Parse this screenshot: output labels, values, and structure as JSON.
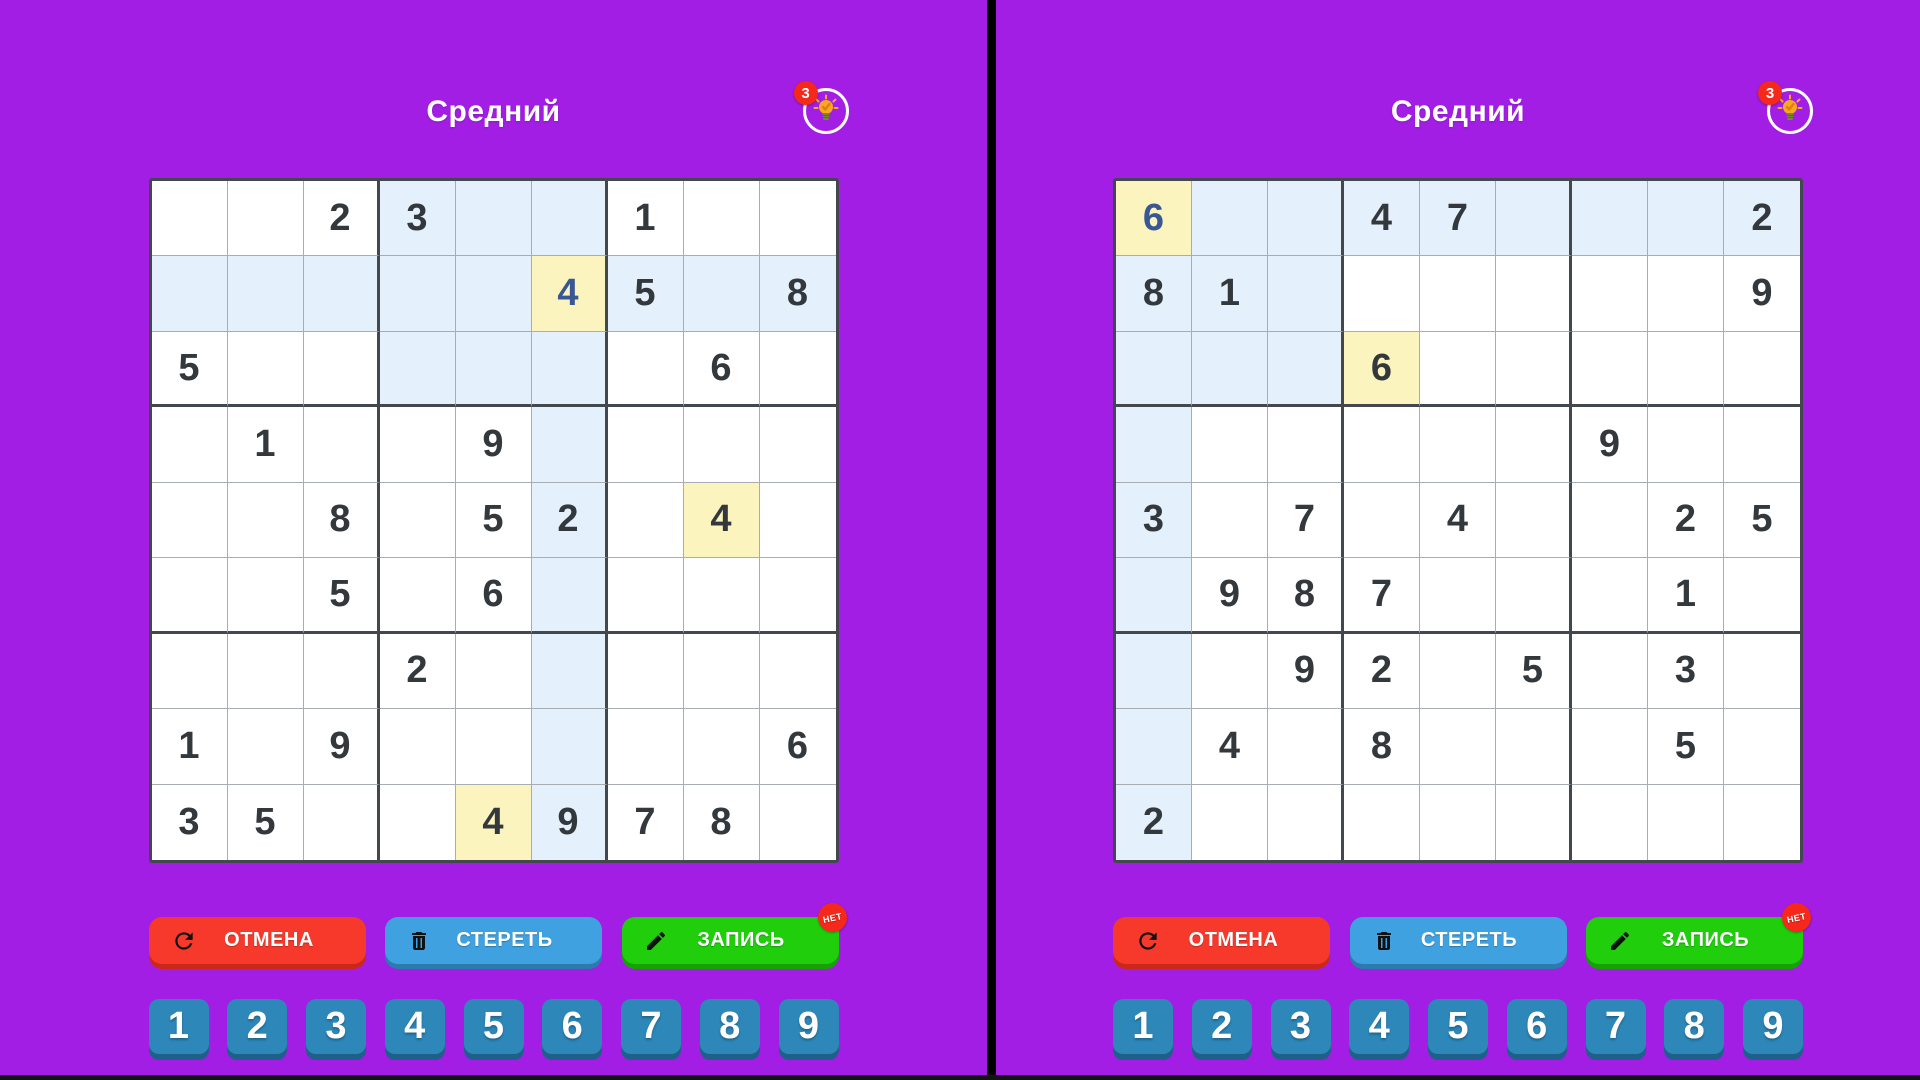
{
  "title": "Средний",
  "controls": {
    "undo": "ОТМЕНА",
    "erase": "СТЕРЕТЬ",
    "notes": "ЗАПИСЬ",
    "notes_badge": "НЕТ"
  },
  "numpad": [
    "1",
    "2",
    "3",
    "4",
    "5",
    "6",
    "7",
    "8",
    "9"
  ],
  "colors": {
    "background": "#A21EE4",
    "divider": "#000000",
    "cell_highlight_blue": "#E4F0FC",
    "cell_highlight_yellow": "#FCF4BE",
    "given_digit": "#33383D",
    "user_digit": "#3A5795",
    "undo_button": "#F6392B",
    "erase_button": "#40A1E0",
    "notes_button": "#20CE0C",
    "numpad_button": "#2D87B9",
    "badge_red": "#F5281B"
  },
  "panels": [
    {
      "title": "Средний",
      "hint_badge": "3",
      "grid": [
        [
          "",
          "",
          "2",
          "3",
          "",
          "",
          "1",
          "",
          ""
        ],
        [
          "",
          "",
          "",
          "",
          "",
          "4",
          "5",
          "",
          "8"
        ],
        [
          "5",
          "",
          "",
          "",
          "",
          "",
          "",
          "6",
          ""
        ],
        [
          "",
          "1",
          "",
          "",
          "9",
          "",
          "",
          "",
          ""
        ],
        [
          "",
          "",
          "8",
          "",
          "5",
          "2",
          "",
          "4",
          ""
        ],
        [
          "",
          "",
          "5",
          "",
          "6",
          "",
          "",
          "",
          ""
        ],
        [
          "",
          "",
          "",
          "2",
          "",
          "",
          "",
          "",
          ""
        ],
        [
          "1",
          "",
          "9",
          "",
          "",
          "",
          "",
          "",
          "6"
        ],
        [
          "3",
          "5",
          "",
          "",
          "4",
          "9",
          "7",
          "8",
          ""
        ]
      ],
      "selected": [
        1,
        5
      ],
      "same_number_cells": [
        [
          4,
          7
        ],
        [
          8,
          4
        ]
      ],
      "user_cells": [
        [
          1,
          5
        ]
      ],
      "highlight_row": 1,
      "highlight_col": 5,
      "highlight_box": [
        0,
        3
      ]
    },
    {
      "title": "Средний",
      "hint_badge": "3",
      "grid": [
        [
          "6",
          "",
          "",
          "4",
          "7",
          "",
          "",
          "",
          "2"
        ],
        [
          "8",
          "1",
          "",
          "",
          "",
          "",
          "",
          "",
          "9"
        ],
        [
          "",
          "",
          "",
          "6",
          "",
          "",
          "",
          "",
          ""
        ],
        [
          "",
          "",
          "",
          "",
          "",
          "",
          "9",
          "",
          ""
        ],
        [
          "3",
          "",
          "7",
          "",
          "4",
          "",
          "",
          "2",
          "5"
        ],
        [
          "",
          "9",
          "8",
          "7",
          "",
          "",
          "",
          "1",
          ""
        ],
        [
          "",
          "",
          "9",
          "2",
          "",
          "5",
          "",
          "3",
          ""
        ],
        [
          "",
          "4",
          "",
          "8",
          "",
          "",
          "",
          "5",
          ""
        ],
        [
          "2",
          "",
          "",
          "",
          "",
          "",
          "",
          "",
          ""
        ]
      ],
      "selected": [
        0,
        0
      ],
      "same_number_cells": [
        [
          2,
          3
        ]
      ],
      "user_cells": [
        [
          0,
          0
        ]
      ],
      "highlight_row": 0,
      "highlight_col": 0,
      "highlight_box": [
        0,
        0
      ]
    }
  ]
}
